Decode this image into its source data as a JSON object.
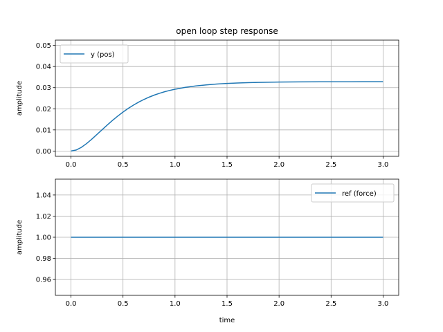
{
  "chart_data": [
    {
      "type": "line",
      "title": "open loop step response",
      "xlabel": "",
      "ylabel": "amplitude",
      "xlim": [
        -0.15,
        3.15
      ],
      "ylim": [
        -0.0025,
        0.0525
      ],
      "xticks": [
        0.0,
        0.5,
        1.0,
        1.5,
        2.0,
        2.5,
        3.0
      ],
      "xtick_labels": [
        "0.0",
        "0.5",
        "1.0",
        "1.5",
        "2.0",
        "2.5",
        "3.0"
      ],
      "yticks": [
        0.0,
        0.01,
        0.02,
        0.03,
        0.04,
        0.05
      ],
      "ytick_labels": [
        "0.00",
        "0.01",
        "0.02",
        "0.03",
        "0.04",
        "0.05"
      ],
      "grid": true,
      "legend_position": "upper left",
      "series": [
        {
          "name": "y (pos)",
          "color": "#1f77b4",
          "x": [
            0.0,
            0.05,
            0.1,
            0.15,
            0.2,
            0.25,
            0.3,
            0.35,
            0.4,
            0.45,
            0.5,
            0.55,
            0.6,
            0.65,
            0.7,
            0.75,
            0.8,
            0.85,
            0.9,
            0.95,
            1.0,
            1.1,
            1.2,
            1.3,
            1.4,
            1.5,
            1.6,
            1.7,
            1.8,
            1.9,
            2.0,
            2.2,
            2.4,
            2.6,
            2.8,
            3.0
          ],
          "y": [
            0.0,
            0.00049,
            0.00176,
            0.00354,
            0.00562,
            0.00786,
            0.01014,
            0.01238,
            0.01453,
            0.01656,
            0.01844,
            0.02017,
            0.02173,
            0.02313,
            0.02438,
            0.02549,
            0.02647,
            0.02732,
            0.02806,
            0.0287,
            0.02925,
            0.03015,
            0.03082,
            0.03132,
            0.0317,
            0.03198,
            0.0322,
            0.03236,
            0.03248,
            0.03257,
            0.03264,
            0.03272,
            0.03276,
            0.03279,
            0.0328,
            0.0328
          ]
        }
      ]
    },
    {
      "type": "line",
      "title": "",
      "xlabel": "time",
      "ylabel": "amplitude",
      "xlim": [
        -0.15,
        3.15
      ],
      "ylim": [
        0.945,
        1.055
      ],
      "xticks": [
        0.0,
        0.5,
        1.0,
        1.5,
        2.0,
        2.5,
        3.0
      ],
      "xtick_labels": [
        "0.0",
        "0.5",
        "1.0",
        "1.5",
        "2.0",
        "2.5",
        "3.0"
      ],
      "yticks": [
        0.96,
        0.98,
        1.0,
        1.02,
        1.04
      ],
      "ytick_labels": [
        "0.96",
        "0.98",
        "1.00",
        "1.02",
        "1.04"
      ],
      "grid": true,
      "legend_position": "upper right",
      "series": [
        {
          "name": "ref (force)",
          "color": "#1f77b4",
          "x": [
            0.0,
            3.0
          ],
          "y": [
            1.0,
            1.0
          ]
        }
      ]
    }
  ]
}
